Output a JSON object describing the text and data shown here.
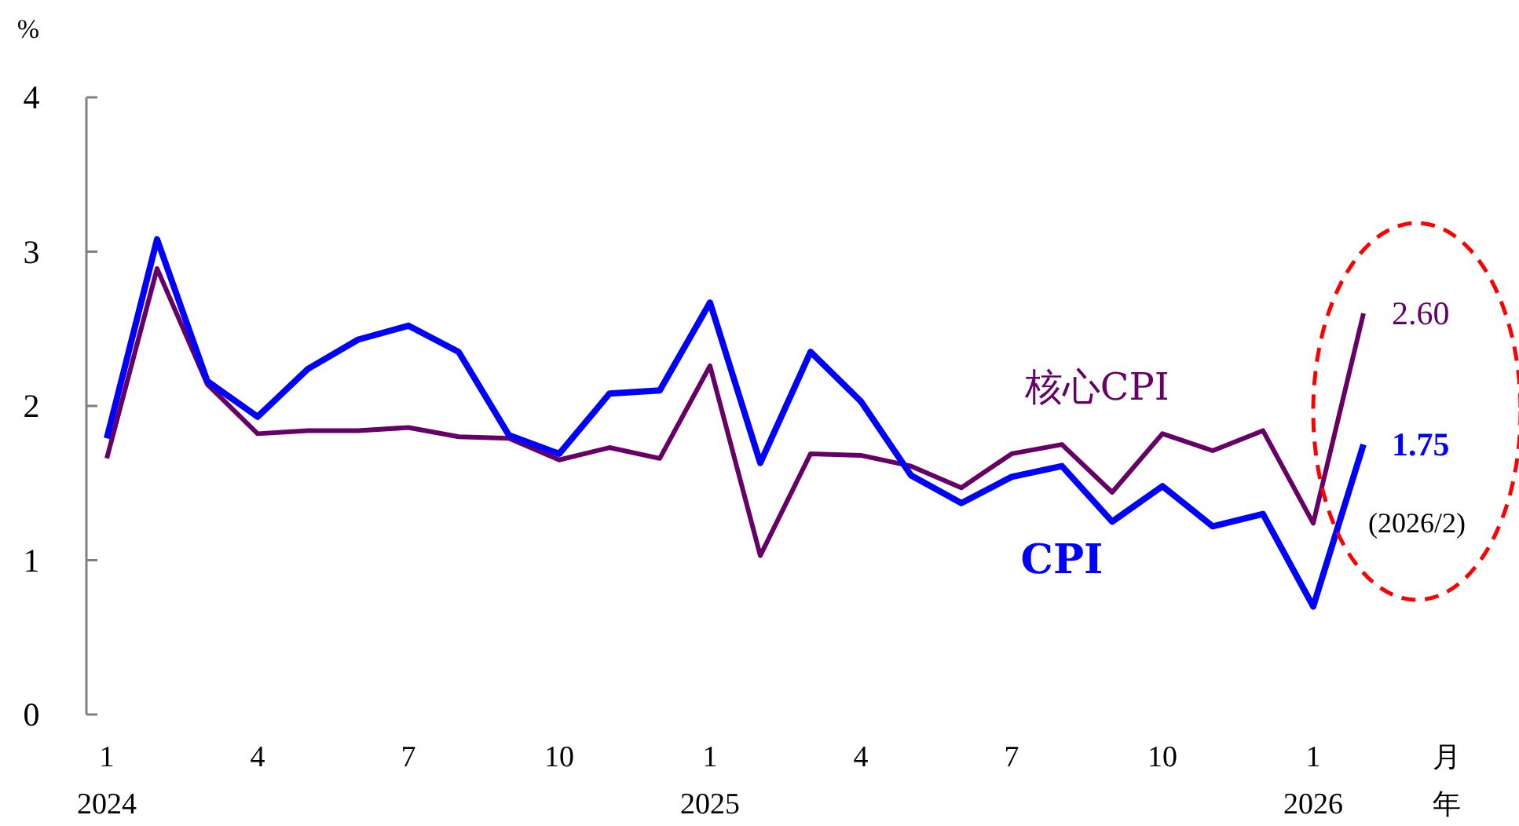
{
  "chart_data": {
    "type": "line",
    "ylabel": "%",
    "xlabel": "月",
    "ylim": [
      0,
      4
    ],
    "yticks": [
      0,
      1,
      2,
      3,
      4
    ],
    "categories": [
      "1\n2024",
      null,
      null,
      "4",
      null,
      null,
      "7",
      null,
      null,
      "10",
      null,
      null,
      "1\n2025",
      null,
      null,
      "4",
      null,
      null,
      "7",
      null,
      null,
      "10",
      null,
      null,
      "1\n2026",
      null
    ],
    "series": [
      {
        "name": "CPI",
        "color": "#0000ff",
        "values": [
          1.79,
          3.08,
          2.16,
          1.93,
          2.24,
          2.43,
          2.52,
          2.35,
          1.81,
          1.69,
          2.08,
          2.1,
          2.67,
          1.63,
          2.35,
          2.03,
          1.55,
          1.37,
          1.54,
          1.61,
          1.25,
          1.48,
          1.22,
          1.3,
          0.7,
          1.75
        ],
        "value_labels": [
          null,
          null,
          null,
          null,
          null,
          null,
          null,
          null,
          null,
          null,
          null,
          null,
          null,
          null,
          null,
          null,
          null,
          null,
          null,
          null,
          null,
          null,
          null,
          null,
          null,
          "**1.75**"
        ]
      },
      {
        "name": "核心CPI",
        "color": "#660066",
        "values": [
          1.66,
          2.89,
          2.14,
          1.82,
          1.84,
          1.84,
          1.86,
          1.8,
          1.79,
          1.65,
          1.73,
          1.66,
          2.26,
          1.03,
          1.69,
          1.68,
          1.61,
          1.47,
          1.69,
          1.75,
          1.44,
          1.82,
          1.71,
          1.84,
          1.24,
          2.6
        ],
        "value_labels": [
          null,
          null,
          null,
          null,
          null,
          null,
          null,
          null,
          null,
          null,
          null,
          null,
          null,
          null,
          null,
          null,
          null,
          null,
          null,
          null,
          null,
          null,
          null,
          null,
          null,
          "2.60"
        ]
      }
    ],
    "annotations": [
      "年",
      "(2026/2)"
    ],
    "legend": false,
    "grid": false,
    "marker": "none",
    "line_style": "solid"
  }
}
